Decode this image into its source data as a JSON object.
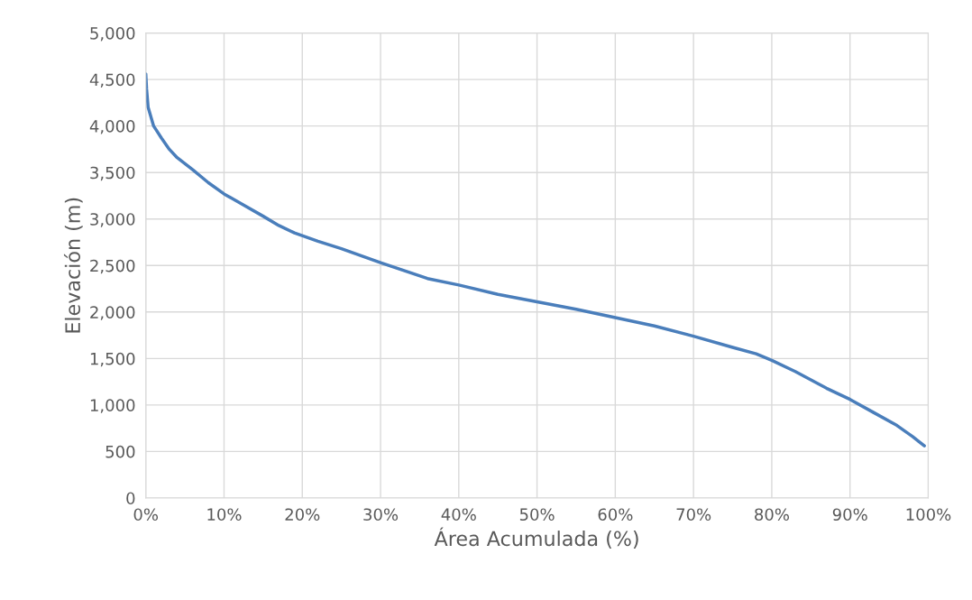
{
  "chart_data": {
    "type": "line",
    "xlabel": "Área Acumulada (%)",
    "ylabel": "Elevación (m)",
    "series": [
      {
        "color": "#4a7ebb",
        "x": [
          0,
          0.1,
          0.3,
          1,
          2,
          3,
          4,
          6,
          8,
          10,
          12.5,
          15,
          17,
          19,
          22,
          25,
          30,
          36,
          40,
          45,
          50,
          55,
          60,
          65,
          70,
          75,
          78,
          80,
          83,
          87,
          90,
          93,
          96,
          98,
          99.5
        ],
        "values": [
          4560,
          4400,
          4200,
          4000,
          3870,
          3750,
          3660,
          3530,
          3390,
          3270,
          3150,
          3030,
          2930,
          2850,
          2760,
          2680,
          2530,
          2360,
          2290,
          2190,
          2110,
          2030,
          1940,
          1850,
          1740,
          1620,
          1550,
          1480,
          1360,
          1180,
          1060,
          920,
          780,
          660,
          560
        ]
      }
    ],
    "xlim": [
      0,
      100
    ],
    "xticks": [
      {
        "value": 0,
        "label": "0%"
      },
      {
        "value": 10,
        "label": "10%"
      },
      {
        "value": 20,
        "label": "20%"
      },
      {
        "value": 30,
        "label": "30%"
      },
      {
        "value": 40,
        "label": "40%"
      },
      {
        "value": 50,
        "label": "50%"
      },
      {
        "value": 60,
        "label": "60%"
      },
      {
        "value": 70,
        "label": "70%"
      },
      {
        "value": 80,
        "label": "80%"
      },
      {
        "value": 90,
        "label": "90%"
      },
      {
        "value": 100,
        "label": "100%"
      }
    ],
    "ylim": [
      0,
      5000
    ],
    "yticks": [
      {
        "value": 0,
        "label": "0"
      },
      {
        "value": 500,
        "label": "500"
      },
      {
        "value": 1000,
        "label": "1,000"
      },
      {
        "value": 1500,
        "label": "1,500"
      },
      {
        "value": 2000,
        "label": "2,000"
      },
      {
        "value": 2500,
        "label": "2,500"
      },
      {
        "value": 3000,
        "label": "3,000"
      },
      {
        "value": 3500,
        "label": "3,500"
      },
      {
        "value": 4000,
        "label": "4,000"
      },
      {
        "value": 4500,
        "label": "4,500"
      },
      {
        "value": 5000,
        "label": "5,000"
      }
    ],
    "grid": true,
    "line_style": "solid",
    "marker": "none"
  }
}
